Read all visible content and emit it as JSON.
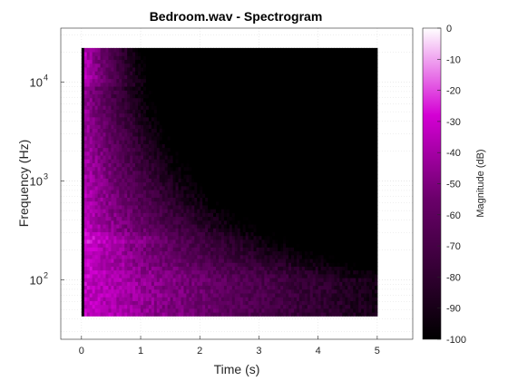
{
  "chart_data": {
    "type": "heatmap",
    "title": "Bedroom.wav - Spectrogram",
    "xlabel": "Time (s)",
    "ylabel": "Frequency (Hz)",
    "xlim": [
      -0.35,
      5.6
    ],
    "ylim": [
      25,
      35000
    ],
    "yscale": "log",
    "x_ticks": [
      0,
      1,
      2,
      3,
      4,
      5
    ],
    "x_tick_labels": [
      "0",
      "1",
      "2",
      "3",
      "4",
      "5"
    ],
    "y_ticks": [
      100,
      1000,
      10000
    ],
    "y_tick_labels": [
      {
        "base": "10",
        "exp": "2"
      },
      {
        "base": "10",
        "exp": "3"
      },
      {
        "base": "10",
        "exp": "4"
      }
    ],
    "grid": true,
    "data_extent": {
      "time_range": [
        0.0,
        5.0
      ],
      "freq_range": [
        43,
        22050
      ]
    },
    "description_values": {
      "onset_time": 0.04,
      "decay": "magnitude decays from about -30 dB near onset to about -95 dB by 2.5 s; high frequencies decay faster",
      "band_near_hz": 260
    },
    "colorbar": {
      "label": "Magnitude (dB)",
      "min": -100,
      "max": 0,
      "ticks": [
        0,
        -10,
        -20,
        -30,
        -40,
        -50,
        -60,
        -70,
        -80,
        -90,
        -100
      ],
      "tick_labels": [
        "0",
        "-10",
        "-20",
        "-30",
        "-40",
        "-50",
        "-60",
        "-70",
        "-80",
        "-90",
        "-100"
      ],
      "colormap": [
        "#000000",
        "#d400d4",
        "#ffffff"
      ]
    },
    "colors": {
      "axis": "#262626",
      "grid": "#dfdfdf",
      "background": "#ffffff"
    }
  }
}
